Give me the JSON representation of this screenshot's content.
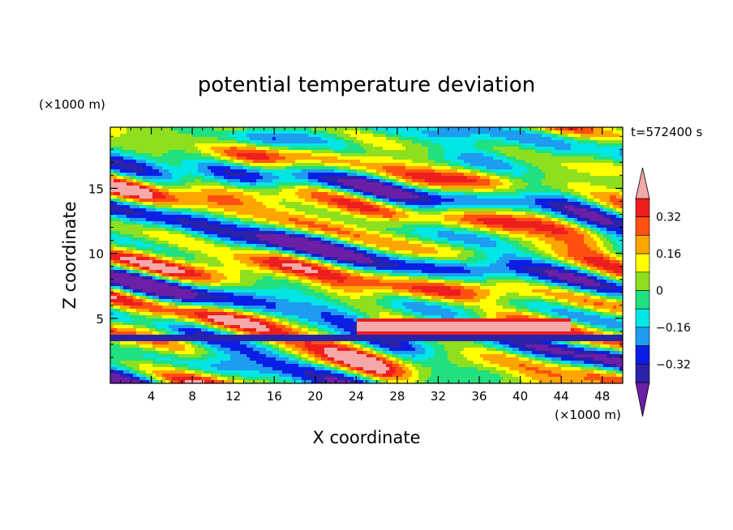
{
  "chart_data": {
    "type": "heatmap",
    "title": "potential temperature deviation",
    "xlabel": "X coordinate",
    "ylabel": "Z coordinate",
    "x_unit_label": "(×1000 m)",
    "y_unit_label": "(×1000 m)",
    "time_label": "t=572400 s",
    "xlim": [
      0,
      50
    ],
    "ylim": [
      0,
      19.7
    ],
    "x_ticks": [
      4,
      8,
      12,
      16,
      20,
      24,
      28,
      32,
      36,
      40,
      44,
      48
    ],
    "y_ticks": [
      5,
      10,
      15
    ],
    "colorbar": {
      "levels": [
        -0.4,
        -0.32,
        -0.24,
        -0.16,
        -0.08,
        0,
        0.08,
        0.16,
        0.24,
        0.32,
        0.4
      ],
      "tick_labels": [
        "-0.32",
        "-0.16",
        "0",
        "0.16",
        "0.32"
      ],
      "tick_values": [
        -0.32,
        -0.16,
        0,
        0.16,
        0.32
      ],
      "colors": [
        "#6a1fa6",
        "#2a22a8",
        "#0a1ee6",
        "#1e9cf0",
        "#00e6e6",
        "#20e080",
        "#8ee01e",
        "#ffff00",
        "#ffa500",
        "#ff5010",
        "#ee1e1e",
        "#f5a8a8"
      ],
      "extend": "both"
    }
  }
}
